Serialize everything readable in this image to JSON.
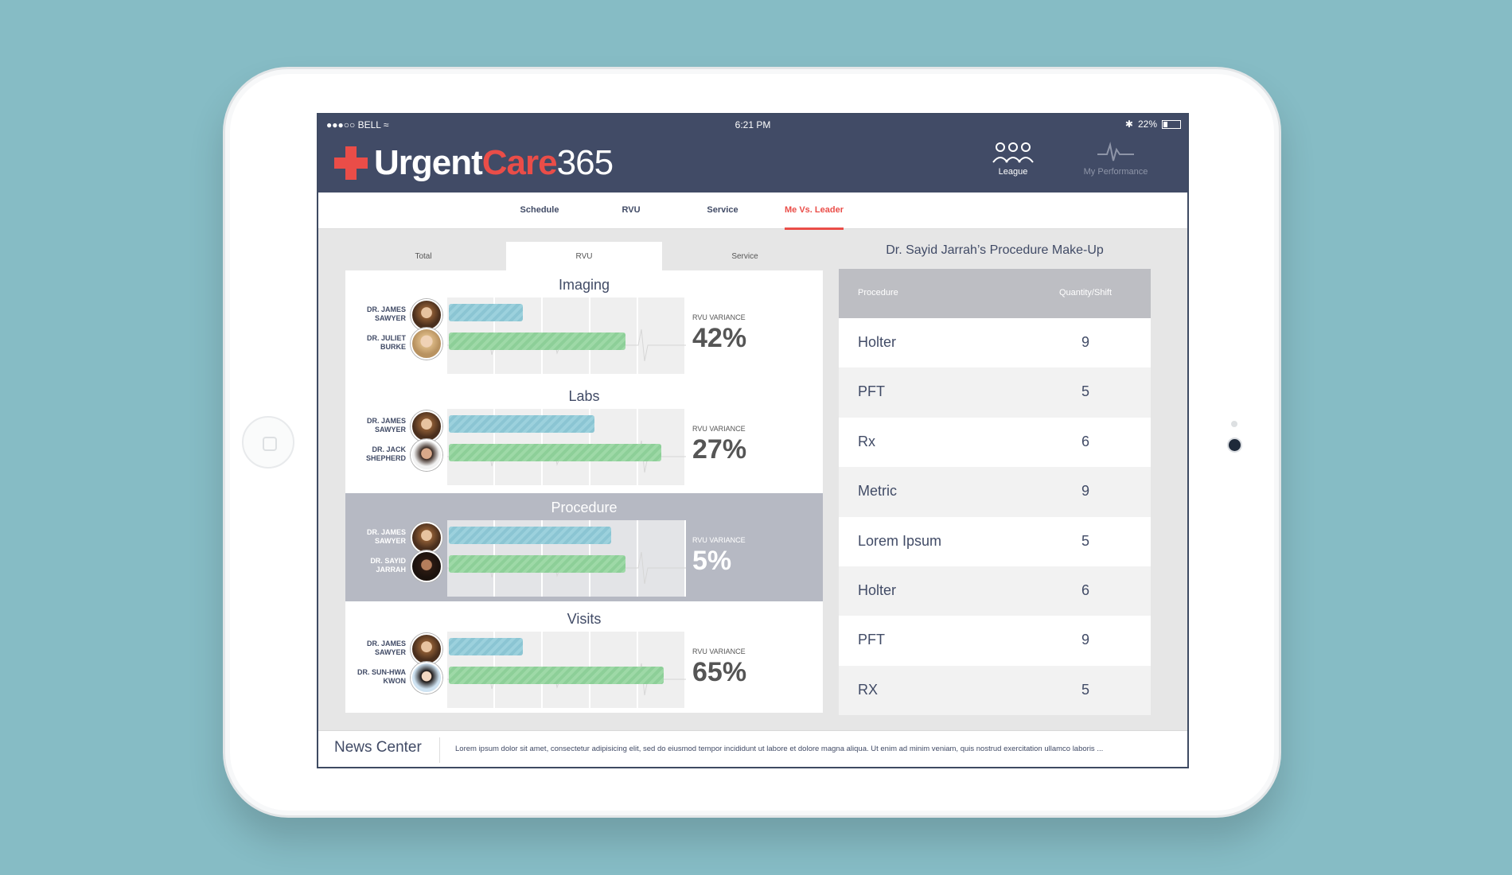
{
  "status_bar": {
    "carrier": "●●●○○ BELL",
    "wifi_icon": "wifi-icon",
    "time": "6:21 PM",
    "bluetooth_icon": "bluetooth-icon",
    "battery": "22%"
  },
  "app": {
    "logo_urgent": "Urgent",
    "logo_care": "Care",
    "logo_num": "365",
    "accent_color": "#ea4d48",
    "bar_color": "#414b66"
  },
  "header_nav": [
    {
      "label": "League",
      "icon": "doctors-group-icon"
    },
    {
      "label": "My Performance",
      "icon": "heartbeat-icon"
    }
  ],
  "tabs": [
    "Schedule",
    "RVU",
    "Service",
    "Me Vs. Leader"
  ],
  "active_tab": "Me Vs. Leader",
  "subtabs": [
    "Total",
    "RVU",
    "Service"
  ],
  "active_subtab": "RVU",
  "variance_label": "RVU VARIANCE",
  "comparison": [
    {
      "title": "Imaging",
      "variance": "42%",
      "me": {
        "name_line1": "DR. JAMES",
        "name_line2": "SAWYER",
        "bar": 0.31
      },
      "leader": {
        "name_line1": "DR. JULIET",
        "name_line2": "BURKE",
        "bar": 0.74
      }
    },
    {
      "title": "Labs",
      "variance": "27%",
      "me": {
        "name_line1": "DR. JAMES",
        "name_line2": "SAWYER",
        "bar": 0.61
      },
      "leader": {
        "name_line1": "DR. JACK",
        "name_line2": "SHEPHERD",
        "bar": 0.89
      }
    },
    {
      "title": "Procedure",
      "variance": "5%",
      "me": {
        "name_line1": "DR. JAMES",
        "name_line2": "SAWYER",
        "bar": 0.68
      },
      "leader": {
        "name_line1": "DR. SAYID",
        "name_line2": "JARRAH",
        "bar": 0.74
      }
    },
    {
      "title": "Visits",
      "variance": "65%",
      "me": {
        "name_line1": "DR. JAMES",
        "name_line2": "SAWYER",
        "bar": 0.31
      },
      "leader": {
        "name_line1": "DR. SUN-HWA",
        "name_line2": "KWON",
        "bar": 0.9
      }
    }
  ],
  "procedure_makeup": {
    "title": "Dr. Sayid Jarrah’s Procedure Make-Up",
    "col1": "Procedure",
    "col2": "Quantity/Shift",
    "rows": [
      {
        "procedure": "Holter",
        "qty": "9"
      },
      {
        "procedure": "PFT",
        "qty": "5"
      },
      {
        "procedure": "Rx",
        "qty": "6"
      },
      {
        "procedure": "Metric",
        "qty": "9"
      },
      {
        "procedure": "Lorem Ipsum",
        "qty": "5"
      },
      {
        "procedure": "Holter",
        "qty": "6"
      },
      {
        "procedure": "PFT",
        "qty": "9"
      },
      {
        "procedure": "RX",
        "qty": "5"
      }
    ]
  },
  "news": {
    "title": "News Center",
    "text": "Lorem ipsum dolor sit amet, consectetur adipisicing elit, sed do eiusmod tempor incididunt ut labore et dolore magna aliqua. Ut enim ad minim veniam, quis nostrud exercitation ullamco laboris ..."
  }
}
